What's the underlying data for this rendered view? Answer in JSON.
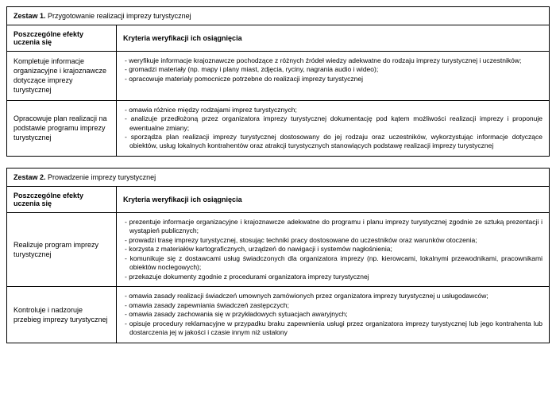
{
  "sets": [
    {
      "title_bold": "Zestaw 1.",
      "title_rest": " Przygotowanie realizacji imprezy turystycznej",
      "header_left": "Poszczególne efekty uczenia się",
      "header_right": "Kryteria weryfikacji ich osiągnięcia",
      "rows": [
        {
          "effect": "Kompletuje informacje organizacyjne i krajoznawcze dotyczące imprezy turystycznej",
          "criteria": [
            "- weryfikuje informacje krajoznawcze pochodzące z różnych źródeł wiedzy adekwatne do rodzaju imprezy turystycznej i uczestników;",
            "- gromadzi materiały (np. mapy i plany miast, zdjęcia, ryciny, nagrania audio i wideo);",
            "- opracowuje materiały pomocnicze potrzebne do realizacji imprezy turystycznej"
          ]
        },
        {
          "effect": "Opracowuje plan realizacji na podstawie programu imprezy turystycznej",
          "criteria": [
            "- omawia różnice między rodzajami imprez turystycznych;",
            "- analizuje przedłożoną przez organizatora imprezy turystycznej dokumentację pod kątem możliwości realizacji imprezy i proponuje ewentualne zmiany;",
            "- sporządza plan realizacji imprezy turystycznej dostosowany do jej rodzaju oraz uczestników, wykorzystując informacje dotyczące obiektów, usług lokalnych kontrahentów oraz atrakcji turystycznych stanowiących podstawę realizacji imprezy turystycznej"
          ]
        }
      ]
    },
    {
      "title_bold": "Zestaw 2.",
      "title_rest": " Prowadzenie imprezy turystycznej",
      "header_left": "Poszczególne efekty uczenia się",
      "header_right": "Kryteria weryfikacji ich osiągnięcia",
      "rows": [
        {
          "effect": "Realizuje program imprezy turystycznej",
          "criteria": [
            "- prezentuje informacje organizacyjne i krajoznawcze adekwatne do programu i planu imprezy turystycznej zgodnie ze sztuką prezentacji i wystąpień publicznych;",
            "- prowadzi trasę imprezy turystycznej, stosując techniki pracy dostosowane do uczestników oraz warunków otoczenia;",
            "- korzysta z materiałów kartograficznych, urządzeń do nawigacji i systemów nagłośnienia;",
            "- komunikuje się z dostawcami usług świadczonych dla organizatora imprezy (np. kierowcami, lokalnymi przewodnikami, pracownikami obiektów noclegowych);",
            "- przekazuje dokumenty zgodnie z procedurami organizatora imprezy turystycznej"
          ]
        },
        {
          "effect": "Kontroluje i nadzoruje przebieg imprezy turystycznej",
          "criteria": [
            "- omawia zasady realizacji świadczeń umownych zamówionych przez organizatora imprezy turystycznej u usługodawców;",
            "- omawia zasady zapewniania świadczeń zastępczych;",
            "- omawia zasady zachowania się w przykładowych sytuacjach awaryjnych;",
            "- opisuje procedury reklamacyjne w przypadku braku zapewnienia usługi przez organizatora imprezy turystycznej lub jego kontrahenta lub dostarczenia jej w jakości i czasie innym niż ustalony"
          ]
        }
      ]
    }
  ]
}
